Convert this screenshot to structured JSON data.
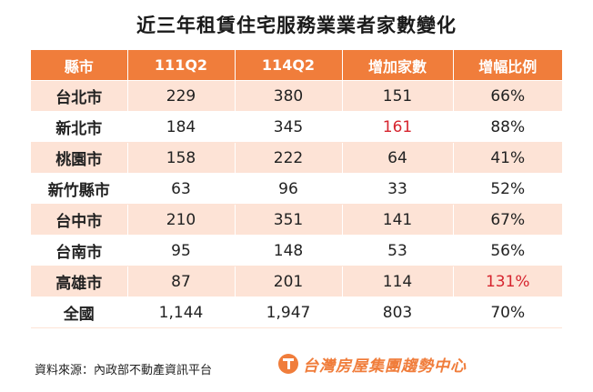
{
  "title": "近三年租賃住宅服務業業者家數變化",
  "table": {
    "headers": [
      "縣市",
      "111Q2",
      "114Q2",
      "增加家數",
      "增幅比例"
    ],
    "rows": [
      [
        "台北市",
        "229",
        "380",
        "151",
        "66%"
      ],
      [
        "新北市",
        "184",
        "345",
        "161",
        "88%"
      ],
      [
        "桃園市",
        "158",
        "222",
        "64",
        "41%"
      ],
      [
        "新竹縣市",
        "63",
        "96",
        "33",
        "52%"
      ],
      [
        "台中市",
        "210",
        "351",
        "141",
        "67%"
      ],
      [
        "台南市",
        "95",
        "148",
        "53",
        "56%"
      ],
      [
        "高雄市",
        "87",
        "201",
        "114",
        "131%"
      ],
      [
        "全國",
        "1,144",
        "1,947",
        "803",
        "70%"
      ]
    ]
  },
  "colors": {
    "header_bg": "#f07d3b",
    "shaded_row_bg": "#fde3d6",
    "highlight_text": "#d6242e"
  },
  "footer": {
    "source": "資料來源：內政部不動產資訊平台",
    "logo_text": "台灣房屋集團趨勢中心",
    "logo_icon": "taiwan-realty-logo-icon"
  }
}
